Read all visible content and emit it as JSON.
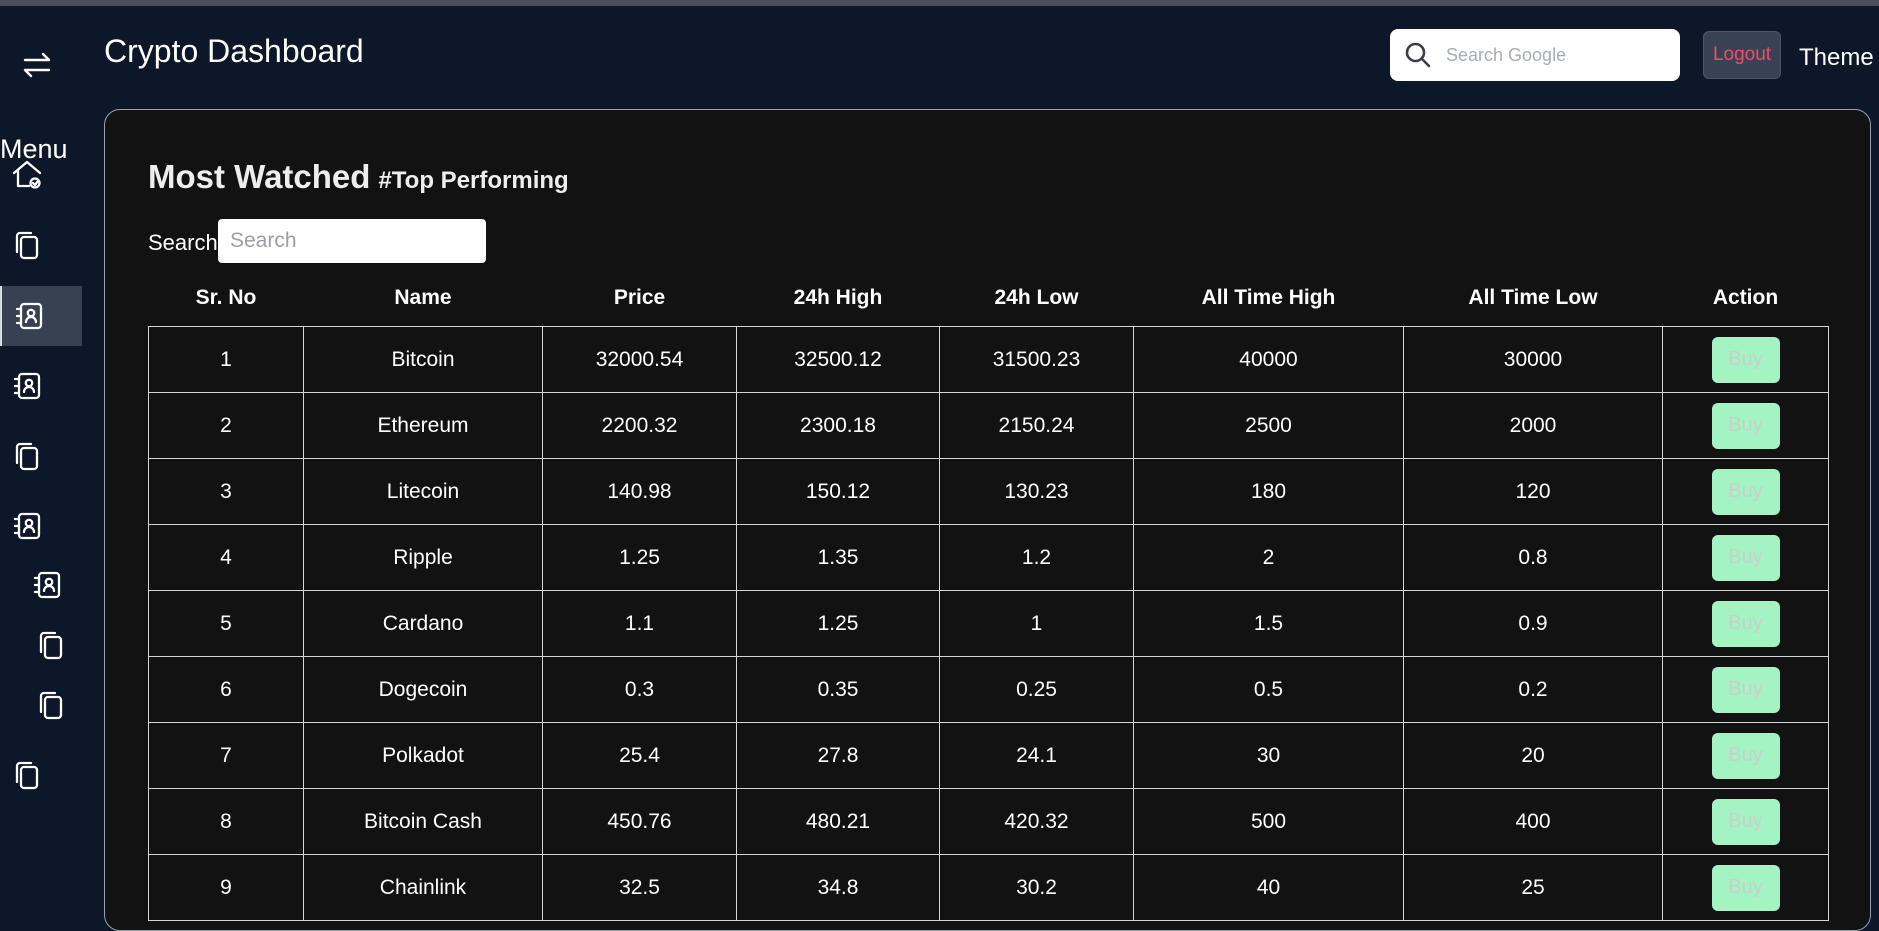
{
  "header": {
    "title": "Crypto Dashboard",
    "search_placeholder": "Search Google",
    "logout_label": "Logout",
    "theme_label": "Theme"
  },
  "sidebar": {
    "menu_label": "Menu",
    "toggle_icon": "swap-arrows-icon",
    "items": [
      {
        "icon": "home-icon"
      },
      {
        "icon": "copy-icon"
      },
      {
        "icon": "contact-book-icon",
        "active": true
      },
      {
        "icon": "contact-book-icon"
      },
      {
        "icon": "copy-icon"
      },
      {
        "icon": "contact-book-icon"
      },
      {
        "icon": "contact-book-icon"
      },
      {
        "icon": "copy-icon"
      },
      {
        "icon": "copy-icon"
      },
      {
        "icon": "copy-icon"
      }
    ]
  },
  "panel": {
    "title": "Most Watched",
    "subtitle": "#Top Performing",
    "search_label": "Search",
    "search_placeholder": "Search"
  },
  "table": {
    "columns": [
      "Sr. No",
      "Name",
      "Price",
      "24h High",
      "24h Low",
      "All Time High",
      "All Time Low",
      "Action"
    ],
    "buy_label": "Buy",
    "rows": [
      [
        "1",
        "Bitcoin",
        "32000.54",
        "32500.12",
        "31500.23",
        "40000",
        "30000"
      ],
      [
        "2",
        "Ethereum",
        "2200.32",
        "2300.18",
        "2150.24",
        "2500",
        "2000"
      ],
      [
        "3",
        "Litecoin",
        "140.98",
        "150.12",
        "130.23",
        "180",
        "120"
      ],
      [
        "4",
        "Ripple",
        "1.25",
        "1.35",
        "1.2",
        "2",
        "0.8"
      ],
      [
        "5",
        "Cardano",
        "1.1",
        "1.25",
        "1",
        "1.5",
        "0.9"
      ],
      [
        "6",
        "Dogecoin",
        "0.3",
        "0.35",
        "0.25",
        "0.5",
        "0.2"
      ],
      [
        "7",
        "Polkadot",
        "25.4",
        "27.8",
        "24.1",
        "30",
        "20"
      ],
      [
        "8",
        "Bitcoin Cash",
        "450.76",
        "480.21",
        "420.32",
        "500",
        "400"
      ],
      [
        "9",
        "Chainlink",
        "32.5",
        "34.8",
        "30.2",
        "40",
        "25"
      ]
    ]
  },
  "colors": {
    "background": "#0d172a",
    "panel": "#121212",
    "buy_button": "#a4f3c2",
    "logout_text": "#ef4f62"
  }
}
